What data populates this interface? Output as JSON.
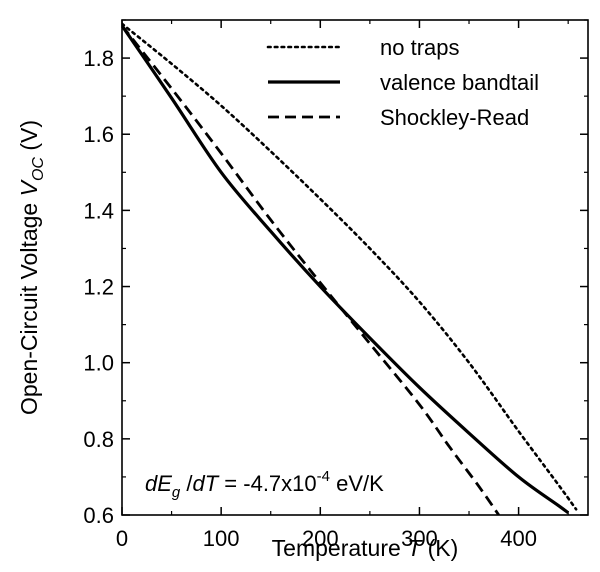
{
  "chart_data": {
    "type": "line",
    "xlabel": "Temperature T (K)",
    "ylabel": "Open-Circuit Voltage V_OC (V)",
    "xlim": [
      0,
      470
    ],
    "ylim": [
      0.6,
      1.9
    ],
    "x_ticks": [
      0,
      100,
      200,
      300,
      400
    ],
    "y_ticks": [
      0.6,
      0.8,
      1.0,
      1.2,
      1.4,
      1.6,
      1.8
    ],
    "x_tick_labels": [
      "0",
      "100",
      "200",
      "300",
      "400"
    ],
    "y_tick_labels": [
      "0.6",
      "0.8",
      "1.0",
      "1.2",
      "1.4",
      "1.6",
      "1.8"
    ],
    "grid": false,
    "legend_position": "top-right",
    "annotation": "dE_g/dT = -4.7x10^-4 eV/K",
    "series": [
      {
        "name": "no traps",
        "line_style": "dotted",
        "points": [
          [
            0,
            1.89
          ],
          [
            50,
            1.785
          ],
          [
            100,
            1.675
          ],
          [
            150,
            1.555
          ],
          [
            200,
            1.43
          ],
          [
            250,
            1.3
          ],
          [
            300,
            1.16
          ],
          [
            350,
            1.0
          ],
          [
            400,
            0.82
          ],
          [
            440,
            0.68
          ],
          [
            458,
            0.615
          ]
        ]
      },
      {
        "name": "valence bandtail",
        "line_style": "solid",
        "points": [
          [
            0,
            1.885
          ],
          [
            50,
            1.695
          ],
          [
            100,
            1.5
          ],
          [
            150,
            1.345
          ],
          [
            200,
            1.2
          ],
          [
            250,
            1.065
          ],
          [
            300,
            0.935
          ],
          [
            350,
            0.815
          ],
          [
            400,
            0.7
          ],
          [
            440,
            0.625
          ],
          [
            450,
            0.606
          ]
        ]
      },
      {
        "name": "Shockley-Read",
        "line_style": "dashed",
        "points": [
          [
            0,
            1.885
          ],
          [
            50,
            1.72
          ],
          [
            100,
            1.55
          ],
          [
            150,
            1.375
          ],
          [
            200,
            1.21
          ],
          [
            250,
            1.05
          ],
          [
            300,
            0.89
          ],
          [
            330,
            0.78
          ],
          [
            360,
            0.675
          ],
          [
            380,
            0.6
          ]
        ]
      }
    ]
  }
}
